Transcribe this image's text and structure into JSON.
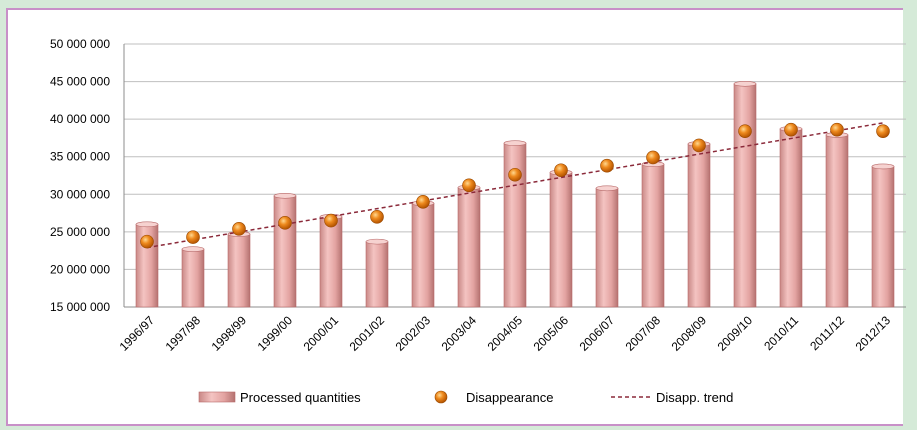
{
  "colors": {
    "bar_fill": "#e8a8a6",
    "bar_edge": "#b86a6a",
    "dot": "#e07a10",
    "dot_highlight": "#ffd080",
    "trend": "#8b2a3a",
    "grid": "#bfbfbf",
    "border": "#c890c8",
    "background": "#d5ead8"
  },
  "chart_data": {
    "type": "bar",
    "categories": [
      "1996/97",
      "1997/98",
      "1998/99",
      "1999/00",
      "2000/01",
      "2001/02",
      "2002/03",
      "2003/04",
      "2004/05",
      "2005/06",
      "2006/07",
      "2007/08",
      "2008/09",
      "2009/10",
      "2010/11",
      "2011/12",
      "2012/13"
    ],
    "ylim": [
      15000000,
      50000000
    ],
    "yticks": [
      15000000,
      20000000,
      25000000,
      30000000,
      35000000,
      40000000,
      45000000,
      50000000
    ],
    "ytick_labels": [
      "15 000 000",
      "20 000 000",
      "25 000 000",
      "30 000 000",
      "35 000 000",
      "40 000 000",
      "45 000 000",
      "50 000 000"
    ],
    "grid": true,
    "legend_position": "bottom",
    "series": [
      {
        "name": "Processed quantities",
        "type": "bar",
        "values": [
          26000000,
          22700000,
          24700000,
          29800000,
          27000000,
          23700000,
          28800000,
          30900000,
          36800000,
          32900000,
          30800000,
          34000000,
          36700000,
          44700000,
          38700000,
          37900000,
          33700000
        ]
      },
      {
        "name": "Disappearance",
        "type": "scatter",
        "values": [
          23700000,
          24300000,
          25400000,
          26200000,
          26500000,
          27000000,
          29000000,
          31200000,
          32600000,
          33200000,
          33800000,
          34900000,
          36500000,
          38400000,
          38600000,
          38600000,
          38400000
        ]
      },
      {
        "name": "Disapp. trend",
        "type": "line",
        "style": "dashed",
        "start": 22900000,
        "end": 39500000
      }
    ]
  }
}
